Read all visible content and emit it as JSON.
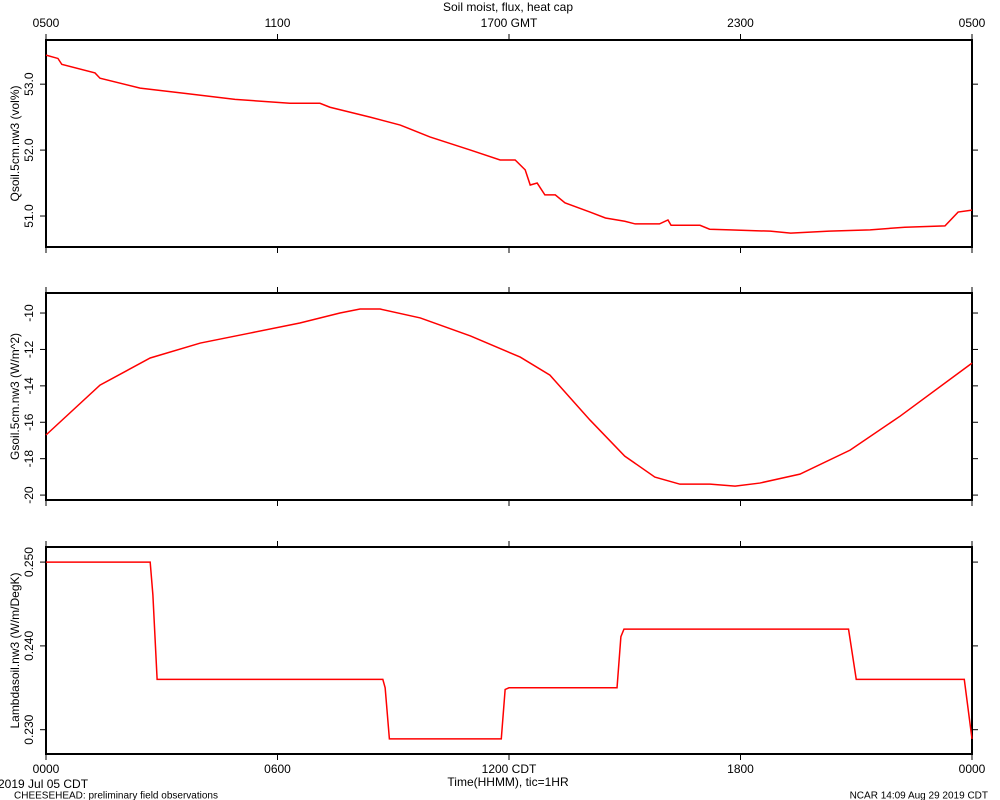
{
  "footer": {
    "left": "CHEESEHEAD: preliminary field observations",
    "right": "NCAR 14:09 Aug 29 2019 CDT"
  },
  "chart_data": [
    {
      "type": "line",
      "title": "Soil moist, flux, heat cap",
      "ylabel": "Qsoil.5cm.nw3 (vol%)",
      "xlim": [
        0,
        24
      ],
      "ylim": [
        50.53,
        53.67
      ],
      "x2ticks": [
        {
          "value": 0,
          "label": "0500"
        },
        {
          "value": 6,
          "label": "1100"
        },
        {
          "value": 12,
          "label": "1700 GMT"
        },
        {
          "value": 18,
          "label": "2300"
        },
        {
          "value": 24,
          "label": "0500"
        }
      ],
      "yticks": [
        {
          "value": 51,
          "label": "51.0"
        },
        {
          "value": 52,
          "label": "52.0"
        },
        {
          "value": 53,
          "label": "53.0"
        }
      ],
      "series": [
        {
          "color": "#ff0000",
          "x": [
            0,
            0.31,
            0.41,
            1.27,
            1.4,
            2.44,
            3.6,
            4.9,
            6.32,
            7.1,
            7.36,
            8.4,
            9.18,
            9.95,
            11.0,
            11.77,
            12.16,
            12.42,
            12.55,
            12.73,
            12.93,
            13.2,
            13.45,
            14.1,
            14.5,
            15.0,
            15.27,
            15.9,
            16.12,
            16.2,
            16.95,
            17.2,
            17.73,
            18.77,
            19.3,
            20.3,
            21.36,
            22.26,
            23.3,
            23.64,
            24
          ],
          "values": [
            53.44,
            53.39,
            53.3,
            53.17,
            53.09,
            52.94,
            52.86,
            52.77,
            52.71,
            52.71,
            52.65,
            52.5,
            52.38,
            52.2,
            52.0,
            51.85,
            51.85,
            51.7,
            51.47,
            51.5,
            51.32,
            51.32,
            51.2,
            51.06,
            50.97,
            50.92,
            50.88,
            50.88,
            50.94,
            50.86,
            50.86,
            50.8,
            50.79,
            50.77,
            50.74,
            50.77,
            50.79,
            50.83,
            50.85,
            51.06,
            51.09
          ]
        }
      ]
    },
    {
      "type": "line",
      "ylabel": "Gsoil.5cm.nw3 (W/m^2)",
      "xlim": [
        0,
        24
      ],
      "ylim": [
        -20.27,
        -8.9
      ],
      "yticks": [
        -20,
        -18,
        -16,
        -14,
        -12,
        -10
      ],
      "series": [
        {
          "color": "#ff0000",
          "x": [
            0,
            1.4,
            2.7,
            4.0,
            5.29,
            6.58,
            7.62,
            8.14,
            8.66,
            9.7,
            11.0,
            12.29,
            13.06,
            14.1,
            15.0,
            15.78,
            16.43,
            17.21,
            17.86,
            18.5,
            19.54,
            20.84,
            22.14,
            24
          ],
          "values": [
            -16.7,
            -13.96,
            -12.47,
            -11.65,
            -11.1,
            -10.55,
            -10.0,
            -9.78,
            -9.78,
            -10.27,
            -11.26,
            -12.42,
            -13.41,
            -15.88,
            -17.86,
            -19.01,
            -19.4,
            -19.4,
            -19.51,
            -19.34,
            -18.85,
            -17.53,
            -15.66,
            -12.75
          ]
        }
      ]
    },
    {
      "type": "line",
      "ylabel": "Lambdasoil.nw3 (W/m/DegK)",
      "xlabel": "Time(HHMM), tic=1HR",
      "date": "2019 Jul 05 CDT",
      "xlim": [
        0,
        24
      ],
      "ylim": [
        0.2271,
        0.2518
      ],
      "xticks": [
        {
          "value": 0,
          "label": "0000"
        },
        {
          "value": 6,
          "label": "0600"
        },
        {
          "value": 12,
          "label": "1200 CDT"
        },
        {
          "value": 18,
          "label": "1800"
        },
        {
          "value": 24,
          "label": "0000"
        }
      ],
      "yticks": [
        {
          "value": 0.23,
          "label": "0.230"
        },
        {
          "value": 0.24,
          "label": "0.240"
        },
        {
          "value": 0.25,
          "label": "0.250"
        }
      ],
      "series": [
        {
          "color": "#ff0000",
          "x": [
            0,
            2.7,
            2.77,
            2.88,
            8.73,
            8.79,
            8.9,
            11.8,
            11.9,
            12.0,
            14.8,
            14.9,
            14.98,
            20.8,
            21.0,
            23.8,
            24
          ],
          "values": [
            0.25,
            0.25,
            0.2461,
            0.236,
            0.236,
            0.235,
            0.2289,
            0.2289,
            0.2348,
            0.235,
            0.235,
            0.2411,
            0.242,
            0.242,
            0.236,
            0.236,
            0.2289
          ]
        }
      ]
    }
  ]
}
